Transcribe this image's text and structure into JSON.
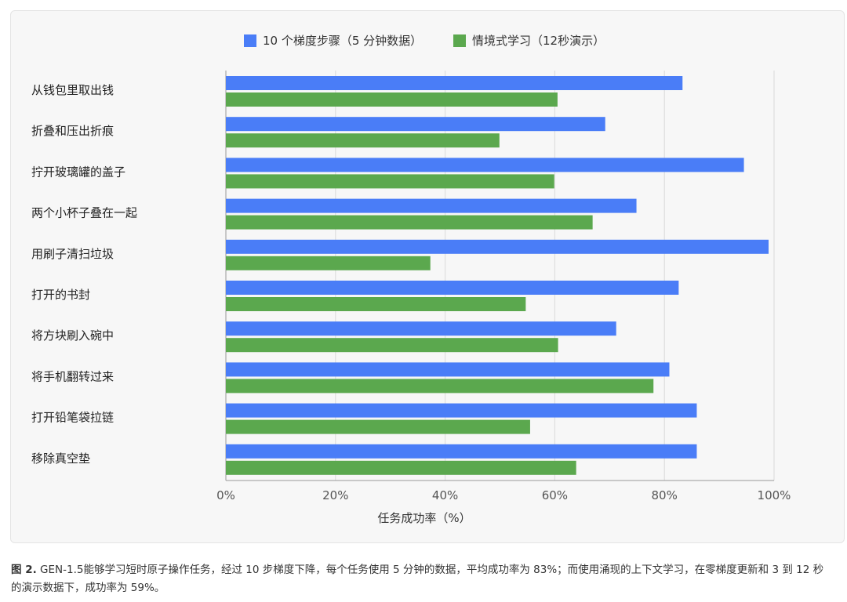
{
  "chart_data": {
    "type": "bar",
    "orientation": "horizontal",
    "categories": [
      "从钱包里取出钱",
      "折叠和压出折痕",
      "拧开玻璃罐的盖子",
      "两个小杯子叠在一起",
      "用刷子清扫垃圾",
      "打开的书封",
      "将方块刷入碗中",
      "将手机翻转过来",
      "打开铅笔袋拉链",
      "移除真空垫"
    ],
    "series": [
      {
        "name": "10 个梯度步骤（5 分钟数据）",
        "color": "#4a7df7",
        "values": [
          83.3,
          69.2,
          94.5,
          74.9,
          99.0,
          82.6,
          71.2,
          80.9,
          85.9,
          85.9
        ]
      },
      {
        "name": "情境式学习（12秒演示）",
        "color": "#5ba84e",
        "values": [
          60.5,
          49.9,
          59.9,
          66.9,
          37.3,
          54.7,
          60.6,
          78.0,
          55.5,
          63.9
        ]
      }
    ],
    "xlabel": "任务成功率（%）",
    "xlim": [
      0,
      100
    ],
    "xticks": [
      "0%",
      "20%",
      "40%",
      "60%",
      "80%",
      "100%"
    ],
    "grid": true,
    "legend": "top"
  },
  "caption": {
    "label": "图 2.",
    "text": " GEN-1.5能够学习短时原子操作任务，经过 10 步梯度下降，每个任务使用 5 分钟的数据，平均成功率为 83%；而使用涌现的上下文学习，在零梯度更新和 3 到 12 秒的演示数据下，成功率为 59%。"
  }
}
